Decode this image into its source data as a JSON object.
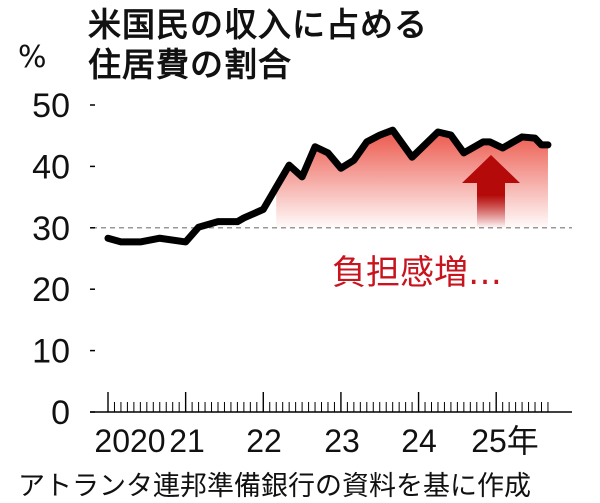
{
  "chart_data": {
    "type": "area",
    "title": "米国民の収入に占める住居費の割合",
    "title_lines": [
      "米国民の収入に占める",
      "住居費の割合"
    ],
    "ylabel": "%",
    "xlabel": "",
    "ylim": [
      0,
      50
    ],
    "yticks": [
      0,
      10,
      20,
      30,
      40,
      50
    ],
    "xtick_labels": [
      "2020",
      "21",
      "22",
      "23",
      "24",
      "25年"
    ],
    "reference_line": 30,
    "annotation": "負担感増…",
    "source": "アトランタ連邦準備銀行の資料を基に作成",
    "grid": false,
    "colors": {
      "line": "#000000",
      "fill": "#e8382a",
      "arrow": "#b40a0a",
      "annotation": "#c8141e",
      "reference": "#777777"
    },
    "series": [
      {
        "x": [
          "2020-01",
          "2020-03",
          "2020-06",
          "2020-09",
          "2021-01",
          "2021-03",
          "2021-06",
          "2021-09",
          "2021-10",
          "2022-01",
          "2022-03",
          "2022-05",
          "2022-07",
          "2022-09",
          "2022-11",
          "2023-01",
          "2023-03",
          "2023-05",
          "2023-07",
          "2023-09",
          "2023-12",
          "2024-04",
          "2024-06",
          "2024-08",
          "2024-11",
          "2024-12",
          "2025-02",
          "2025-05",
          "2025-07",
          "2025-08",
          "2025-09"
        ],
        "y": [
          28.3,
          27.7,
          27.7,
          28.3,
          27.7,
          30.1,
          31.0,
          31.0,
          31.6,
          33.0,
          36.6,
          40.2,
          38.3,
          43.2,
          42.2,
          39.7,
          41.0,
          44.0,
          45.1,
          45.9,
          41.5,
          45.6,
          45.1,
          42.2,
          44.0,
          44.0,
          43.0,
          44.8,
          44.6,
          43.5,
          43.5
        ]
      }
    ]
  }
}
